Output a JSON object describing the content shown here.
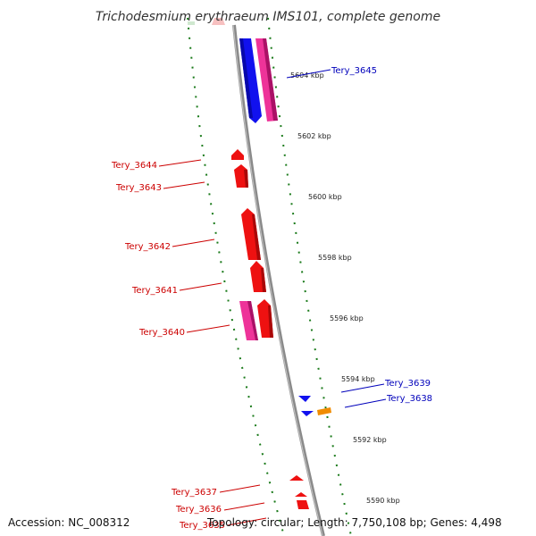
{
  "title": "Trichodesmium erythraeum IMS101, complete genome",
  "accession": "Accession: NC_008312",
  "topology_line": "Topology: circular; Length: 7,750,108 bp; Genes: 4,498",
  "colors": {
    "backbone": "#8a8a8a",
    "ruler_dash": "#1a7a1a",
    "label_forward_strand": "#cc0000",
    "label_reverse_strand": "#0000bb",
    "gene_red": "#ee1111",
    "gene_magenta": "#ee3399",
    "gene_blue": "#1111ee",
    "gene_orange": "#f08c00"
  },
  "scale_ticks": [
    "5604 kbp",
    "5602 kbp",
    "5600 kbp",
    "5598 kbp",
    "5596 kbp",
    "5594 kbp",
    "5592 kbp",
    "5590 kbp"
  ],
  "genes": [
    {
      "label": "Tery_3645",
      "strand": "reverse",
      "color": "blue"
    },
    {
      "label": "Tery_3644",
      "strand": "forward",
      "color": "red"
    },
    {
      "label": "Tery_3643",
      "strand": "forward",
      "color": "red"
    },
    {
      "label": "Tery_3642",
      "strand": "forward",
      "color": "red"
    },
    {
      "label": "Tery_3641",
      "strand": "forward",
      "color": "red"
    },
    {
      "label": "Tery_3640",
      "strand": "forward",
      "color": "red"
    },
    {
      "label": "Tery_3639",
      "strand": "reverse",
      "color": "blue"
    },
    {
      "label": "Tery_3638",
      "strand": "reverse",
      "color": "orange"
    },
    {
      "label": "Tery_3637",
      "strand": "forward",
      "color": "red"
    },
    {
      "label": "Tery_3636",
      "strand": "forward",
      "color": "red"
    },
    {
      "label": "Tery_3635",
      "strand": "forward",
      "color": "red"
    }
  ]
}
